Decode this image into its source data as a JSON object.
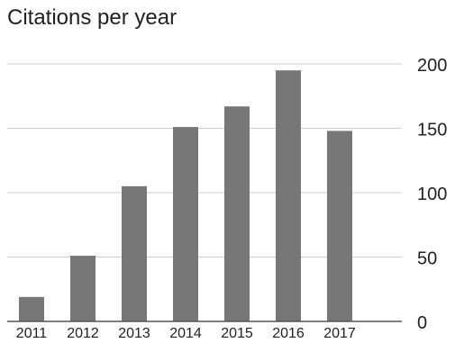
{
  "chart_data": {
    "type": "bar",
    "title": "Citations per year",
    "xlabel": "",
    "ylabel": "",
    "categories": [
      "2011",
      "2012",
      "2013",
      "2014",
      "2015",
      "2016",
      "2017"
    ],
    "values": [
      19,
      51,
      105,
      151,
      167,
      195,
      148
    ],
    "ylim": [
      0,
      200
    ],
    "yticks": [
      "0",
      "50",
      "100",
      "150",
      "200"
    ],
    "grid": true,
    "y_axis_side": "right",
    "legend": "none",
    "bar_color": "#777777",
    "grid_color": "#cccccc",
    "axis_color": "#555555",
    "text_color": "#222222"
  }
}
